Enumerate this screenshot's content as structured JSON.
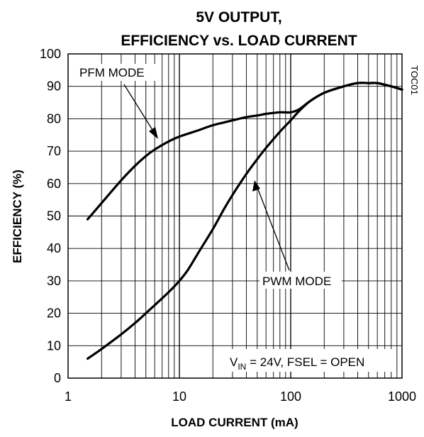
{
  "chart_data": {
    "type": "line",
    "title_lines": [
      "5V OUTPUT,",
      "EFFICIENCY vs. LOAD CURRENT"
    ],
    "xlabel": "LOAD CURRENT (mA)",
    "ylabel": "EFFICIENCY (%)",
    "x_scale": "log",
    "xlim": [
      1,
      1000
    ],
    "ylim": [
      0,
      100
    ],
    "x_ticks": [
      "1",
      "10",
      "100",
      "1000"
    ],
    "y_ticks": [
      "0",
      "10",
      "20",
      "30",
      "40",
      "50",
      "60",
      "70",
      "80",
      "90",
      "100"
    ],
    "grid": true,
    "figure_id": "TOC01",
    "condition_note": {
      "prefix": "V",
      "subscript": "IN",
      "suffix": " = 24V, FSEL = OPEN"
    },
    "series": [
      {
        "name": "PFM MODE",
        "x": [
          1.5,
          2,
          3,
          4,
          5,
          6,
          8,
          10,
          15,
          20,
          30,
          40,
          50,
          60,
          80,
          100,
          120,
          150,
          200,
          300,
          400,
          500,
          600,
          700,
          800,
          1000
        ],
        "y": [
          49,
          54,
          61,
          65.5,
          68.5,
          70.5,
          73,
          74.5,
          76.5,
          78,
          79.5,
          80.5,
          81,
          81.5,
          82,
          82,
          83,
          85.5,
          88,
          90,
          91,
          91,
          91,
          90.5,
          90,
          89
        ]
      },
      {
        "name": "PWM MODE",
        "x": [
          1.5,
          2,
          3,
          4,
          5,
          6,
          8,
          10,
          12,
          15,
          20,
          25,
          30,
          40,
          50,
          60,
          80,
          100,
          120,
          150,
          200,
          300,
          400,
          500,
          600,
          700,
          800,
          1000
        ],
        "y": [
          6,
          9,
          13.5,
          17,
          20,
          22.5,
          26.5,
          30,
          33.5,
          39,
          46,
          52,
          56.5,
          63,
          67.5,
          71,
          76,
          79.5,
          82.5,
          85.5,
          88,
          90,
          91,
          91,
          91,
          90.5,
          90,
          89
        ]
      }
    ]
  }
}
